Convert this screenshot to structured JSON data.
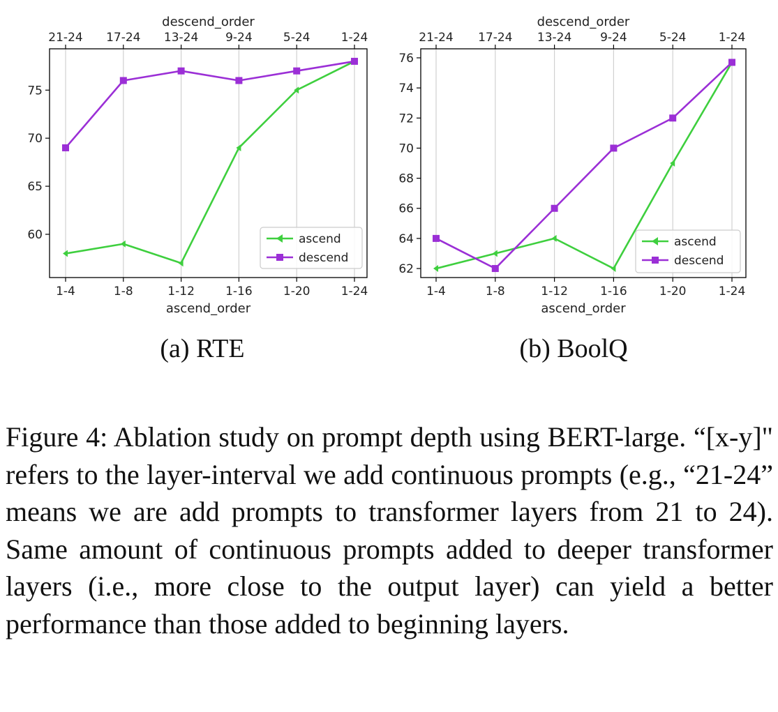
{
  "chart_data": [
    {
      "type": "line",
      "x_bottom": [
        "1-4",
        "1-8",
        "1-12",
        "1-16",
        "1-20",
        "1-24"
      ],
      "x_top": [
        "21-24",
        "17-24",
        "13-24",
        "9-24",
        "5-24",
        "1-24"
      ],
      "xlabel": "ascend_order",
      "xlabel_top": "descend_order",
      "ylabel": "",
      "ylim": [
        55.5,
        79.3
      ],
      "yticks": [
        60,
        65,
        70,
        75
      ],
      "grid": "vertical",
      "legend_position": "lower-right",
      "series": [
        {
          "name": "ascend",
          "color": "#3ecf3e",
          "marker": "left-triangle",
          "values": [
            58,
            59,
            57,
            69,
            75,
            78
          ]
        },
        {
          "name": "descend",
          "color": "#9b2fd6",
          "marker": "square",
          "values": [
            69,
            76,
            77,
            76,
            77,
            78
          ]
        }
      ]
    },
    {
      "type": "line",
      "x_bottom": [
        "1-4",
        "1-8",
        "1-12",
        "1-16",
        "1-20",
        "1-24"
      ],
      "x_top": [
        "21-24",
        "17-24",
        "13-24",
        "9-24",
        "5-24",
        "1-24"
      ],
      "xlabel": "ascend_order",
      "xlabel_top": "descend_order",
      "ylabel": "",
      "ylim": [
        61.4,
        76.6
      ],
      "yticks": [
        62,
        64,
        66,
        68,
        70,
        72,
        74,
        76
      ],
      "grid": "vertical",
      "legend_position": "lower-right",
      "series": [
        {
          "name": "ascend",
          "color": "#3ecf3e",
          "marker": "left-triangle",
          "values": [
            62,
            63,
            64,
            62,
            69,
            75.7
          ]
        },
        {
          "name": "descend",
          "color": "#9b2fd6",
          "marker": "square",
          "values": [
            64,
            62,
            66,
            70,
            72,
            75.7
          ]
        }
      ]
    }
  ],
  "subcaptions": [
    "(a)  RTE",
    "(b)  BoolQ"
  ],
  "caption": "Figure 4: Ablation study on prompt depth using BERT-large. “[x-y]\" refers to the layer-interval we add continuous prompts (e.g., “21-24” means we are add prompts to transformer layers from 21 to 24).  Same amount of continuous prompts added to deeper transformer layers (i.e., more close to the output layer) can yield a better performance than those added to beginning layers."
}
